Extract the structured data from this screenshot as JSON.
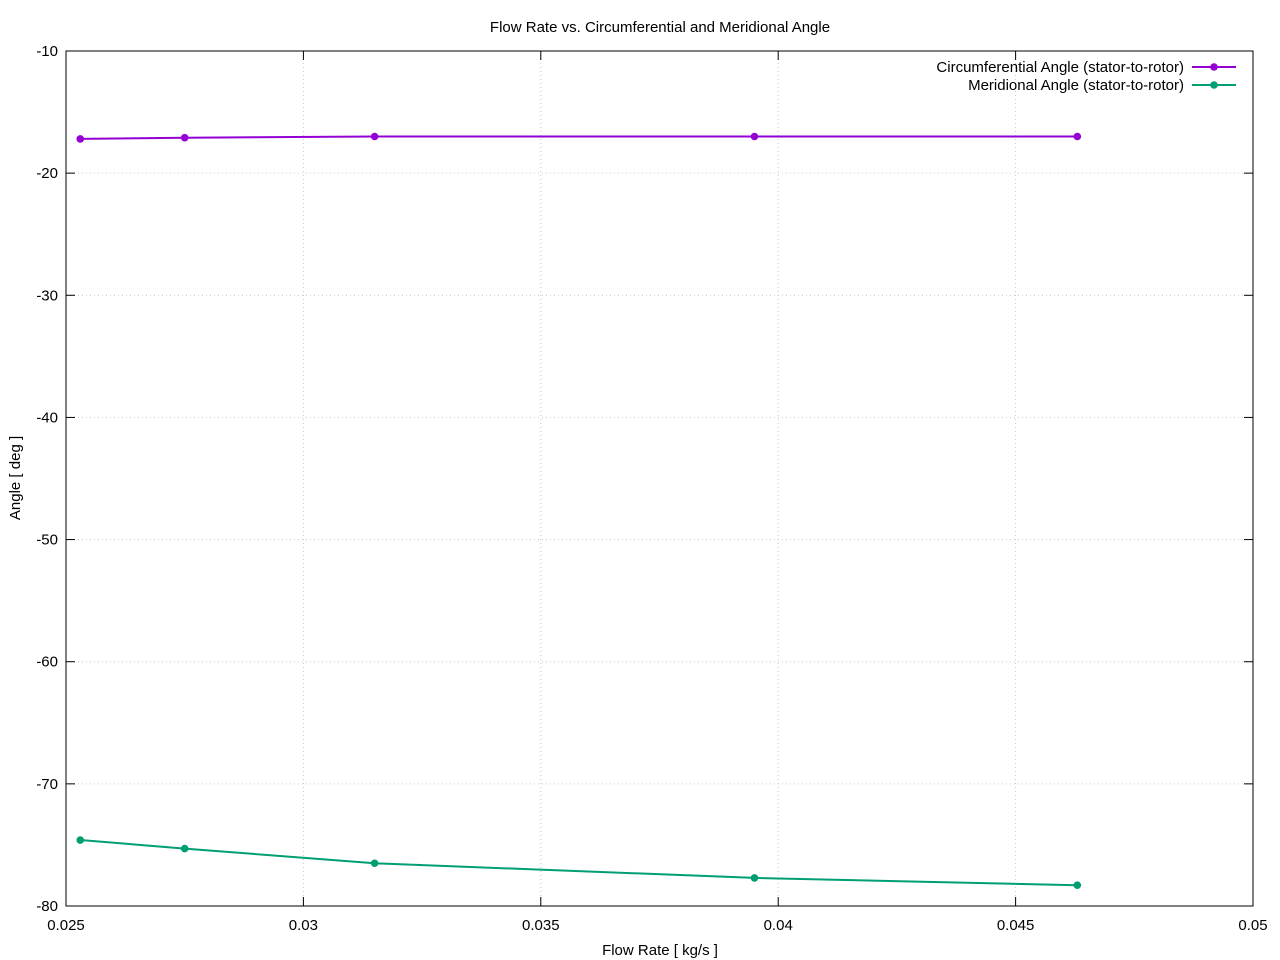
{
  "chart_data": {
    "type": "line",
    "title": "Flow Rate vs. Circumferential and Meridional Angle",
    "xlabel": "Flow Rate [ kg/s ]",
    "ylabel": "Angle [ deg ]",
    "xlim": [
      0.025,
      0.05
    ],
    "ylim": [
      -80,
      -10
    ],
    "xticks": [
      0.025,
      0.03,
      0.035,
      0.04,
      0.045,
      0.05
    ],
    "xtick_labels": [
      "0.025",
      "0.03",
      "0.035",
      "0.04",
      "0.045",
      "0.05"
    ],
    "yticks": [
      -80,
      -70,
      -60,
      -50,
      -40,
      -30,
      -20,
      -10
    ],
    "ytick_labels": [
      "-80",
      "-70",
      "-60",
      "-50",
      "-40",
      "-30",
      "-20",
      "-10"
    ],
    "grid": true,
    "legend_position": "top-right",
    "series": [
      {
        "name": "Circumferential Angle (stator-to-rotor)",
        "color": "#9400d3",
        "x": [
          0.0253,
          0.0275,
          0.0315,
          0.0395,
          0.0463
        ],
        "y": [
          -17.2,
          -17.1,
          -17.0,
          -17.0,
          -17.0
        ]
      },
      {
        "name": "Meridional Angle (stator-to-rotor)",
        "color": "#009e73",
        "x": [
          0.0253,
          0.0275,
          0.0315,
          0.0395,
          0.0463
        ],
        "y": [
          -74.6,
          -75.3,
          -76.5,
          -77.7,
          -78.3
        ]
      }
    ]
  }
}
